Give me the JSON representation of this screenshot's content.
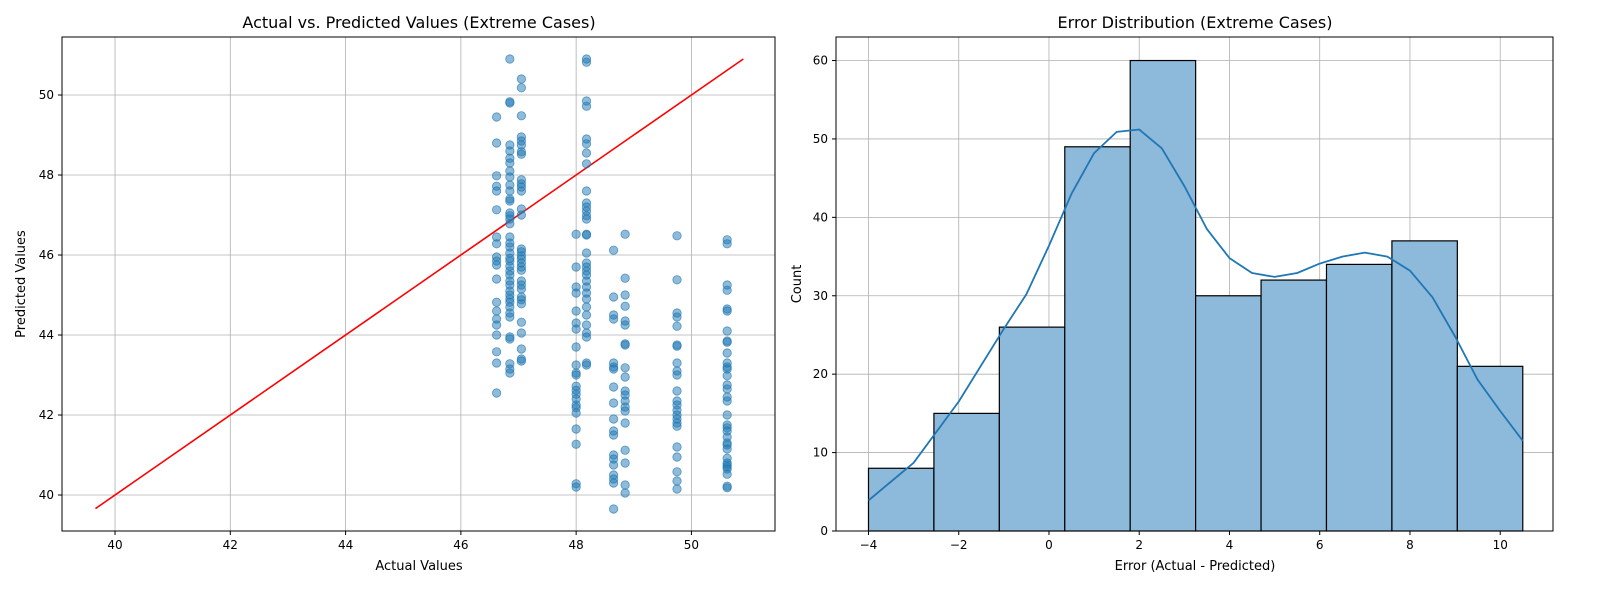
{
  "chart_data": [
    {
      "type": "scatter",
      "title": "Actual vs. Predicted Values (Extreme Cases)",
      "xlabel": "Actual Values",
      "ylabel": "Predicted Values",
      "xlim": [
        39.08,
        51.45
      ],
      "ylim": [
        39.1,
        51.45
      ],
      "xticks": [
        40,
        42,
        44,
        46,
        48,
        50
      ],
      "yticks": [
        40,
        42,
        44,
        46,
        48,
        50
      ],
      "grid": true,
      "point_color": "#1f77b4",
      "reference_line": {
        "color": "#ff0000",
        "x": [
          39.66,
          50.9
        ],
        "y": [
          39.66,
          50.9
        ]
      },
      "groups": [
        {
          "x": 46.62,
          "y": [
            49.45,
            48.8,
            47.98,
            47.72,
            47.6,
            47.13,
            46.45,
            46.28,
            45.95,
            45.85,
            45.75,
            45.4,
            44.82,
            44.6,
            44.4,
            44.25,
            44.0,
            43.58,
            43.3,
            42.55
          ]
        },
        {
          "x": 46.85,
          "y": [
            50.9,
            49.83,
            49.8,
            48.75,
            48.6,
            48.42,
            48.3,
            48.1,
            47.95,
            47.75,
            47.6,
            47.4,
            47.35,
            47.05,
            46.98,
            46.9,
            46.78,
            46.45,
            46.3,
            46.2,
            46.05,
            45.92,
            45.85,
            45.72,
            45.6,
            45.5,
            45.35,
            45.25,
            45.1,
            45.0,
            44.9,
            44.82,
            44.7,
            44.55,
            44.45,
            43.95,
            43.9,
            43.28,
            43.15,
            43.05
          ]
        },
        {
          "x": 47.05,
          "y": [
            50.4,
            50.18,
            49.48,
            48.95,
            48.85,
            48.75,
            48.58,
            48.52,
            47.88,
            47.78,
            47.7,
            47.6,
            47.15,
            47.0,
            46.15,
            46.08,
            45.98,
            45.9,
            45.8,
            45.7,
            45.62,
            45.35,
            45.25,
            45.15,
            44.95,
            44.88,
            44.78,
            44.32,
            44.05,
            43.65,
            43.4,
            43.35
          ]
        },
        {
          "x": 48.0,
          "y": [
            46.52,
            45.7,
            45.2,
            45.05,
            44.6,
            44.3,
            44.15,
            43.7,
            43.25,
            43.05,
            43.0,
            42.72,
            42.62,
            42.52,
            42.4,
            42.25,
            42.18,
            42.05,
            41.65,
            41.27,
            40.28,
            40.2
          ]
        },
        {
          "x": 48.18,
          "y": [
            50.9,
            50.82,
            49.85,
            49.72,
            48.9,
            48.78,
            48.55,
            48.28,
            47.6,
            47.3,
            47.2,
            47.1,
            46.98,
            46.9,
            46.52,
            46.5,
            46.05,
            45.8,
            45.7,
            45.6,
            45.5,
            45.35,
            45.2,
            45.05,
            44.9,
            44.7,
            44.5,
            44.25,
            44.05,
            43.95,
            43.3,
            43.25
          ]
        },
        {
          "x": 48.65,
          "y": [
            46.12,
            44.95,
            44.5,
            44.4,
            43.3,
            43.2,
            43.15,
            42.7,
            42.3,
            41.9,
            41.6,
            41.5,
            41.0,
            40.9,
            40.75,
            40.5,
            40.4,
            40.3,
            39.65
          ]
        },
        {
          "x": 48.85,
          "y": [
            46.52,
            45.42,
            45.0,
            44.72,
            44.35,
            44.25,
            43.78,
            43.75,
            43.18,
            42.95,
            42.6,
            42.5,
            42.35,
            42.2,
            42.1,
            41.8,
            41.12,
            40.8,
            40.25,
            40.05
          ]
        },
        {
          "x": 49.75,
          "y": [
            46.48,
            45.38,
            44.55,
            44.45,
            44.22,
            43.75,
            43.72,
            43.3,
            43.1,
            43.0,
            42.6,
            42.35,
            42.25,
            42.12,
            42.0,
            41.9,
            41.8,
            41.72,
            41.2,
            40.95,
            40.58,
            40.35,
            40.15
          ]
        },
        {
          "x": 50.62,
          "y": [
            46.38,
            46.28,
            45.25,
            45.12,
            44.65,
            44.6,
            44.1,
            43.85,
            43.82,
            43.55,
            43.3,
            43.2,
            43.15,
            42.98,
            42.75,
            42.65,
            42.45,
            42.35,
            42.0,
            41.75,
            41.68,
            41.6,
            41.45,
            41.3,
            41.25,
            41.15,
            40.92,
            40.8,
            40.75,
            40.7,
            40.65,
            40.52,
            40.22,
            40.18
          ]
        }
      ]
    },
    {
      "type": "histogram",
      "title": "Error Distribution (Extreme Cases)",
      "xlabel": "Error (Actual - Predicted)",
      "ylabel": "Count",
      "xlim": [
        -4.72,
        11.17
      ],
      "ylim": [
        0,
        63
      ],
      "xticks": [
        -4,
        -2,
        0,
        2,
        4,
        6,
        8,
        10
      ],
      "yticks": [
        0,
        10,
        20,
        30,
        40,
        50,
        60
      ],
      "grid": true,
      "bar_color": "#8db9da",
      "bar_edge_color": "#000000",
      "kde_color": "#1f77b4",
      "bin_edges": [
        -4.0,
        -2.55,
        -1.1,
        0.35,
        1.8,
        3.25,
        4.7,
        6.15,
        7.6,
        9.05,
        10.5
      ],
      "counts": [
        8,
        15,
        26,
        49,
        60,
        30,
        32,
        34,
        37,
        21
      ],
      "kde": {
        "x": [
          -4.0,
          -3.0,
          -2.0,
          -1.0,
          -0.5,
          0.0,
          0.5,
          1.0,
          1.5,
          2.0,
          2.5,
          3.0,
          3.5,
          4.0,
          4.5,
          5.0,
          5.5,
          6.0,
          6.5,
          7.0,
          7.5,
          8.0,
          8.5,
          9.0,
          9.5,
          10.0,
          10.5
        ],
        "y": [
          3.9,
          8.7,
          16.5,
          25.8,
          30.2,
          36.4,
          43.0,
          48.2,
          50.9,
          51.2,
          48.8,
          44.0,
          38.5,
          34.8,
          32.9,
          32.4,
          32.9,
          34.1,
          35.0,
          35.5,
          35.0,
          33.2,
          29.8,
          24.8,
          19.3,
          15.3,
          11.5
        ]
      }
    }
  ]
}
